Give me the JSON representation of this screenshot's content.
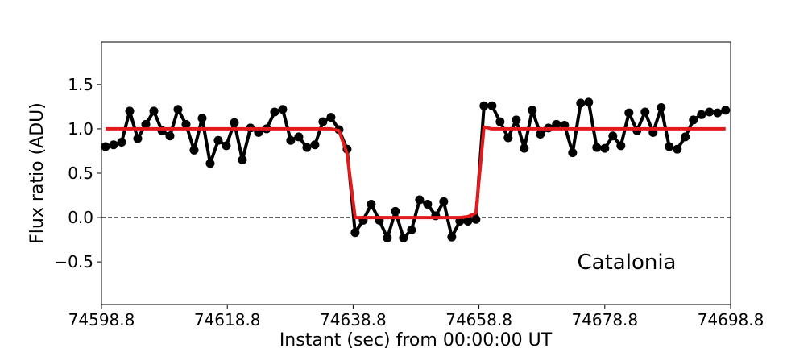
{
  "chart_data": {
    "type": "line",
    "annotation": "Catalonia",
    "xlabel": "Instant (sec) from 00:00:00 UT",
    "ylabel": "Flux ratio (ADU)",
    "x": [
      74599.44,
      74600.72,
      74602.0,
      74603.28,
      74604.56,
      74605.84,
      74607.12,
      74608.4,
      74609.68,
      74610.96,
      74612.24,
      74613.52,
      74614.8,
      74616.08,
      74617.36,
      74618.64,
      74619.92,
      74621.2,
      74622.48,
      74623.76,
      74625.04,
      74626.32,
      74627.6,
      74628.88,
      74630.16,
      74631.44,
      74632.72,
      74634.0,
      74635.28,
      74636.56,
      74637.84,
      74639.12,
      74640.4,
      74641.68,
      74642.96,
      74644.24,
      74645.52,
      74646.8,
      74648.08,
      74649.36,
      74650.64,
      74651.92,
      74653.2,
      74654.48,
      74655.76,
      74657.04,
      74658.32,
      74659.6,
      74660.88,
      74662.16,
      74663.44,
      74664.72,
      74666.0,
      74667.28,
      74668.56,
      74669.84,
      74671.12,
      74672.4,
      74673.68,
      74674.96,
      74676.24,
      74677.52,
      74678.8,
      74680.08,
      74681.36,
      74682.64,
      74683.92,
      74685.2,
      74686.48,
      74687.76,
      74689.04,
      74690.32,
      74691.6,
      74692.88,
      74694.16,
      74695.44,
      74696.72,
      74698.0
    ],
    "series": [
      {
        "color": "#000000",
        "markers": true,
        "values": [
          0.8,
          0.82,
          0.85,
          1.2,
          0.89,
          1.05,
          1.2,
          0.98,
          0.92,
          1.22,
          1.05,
          0.76,
          1.12,
          0.61,
          0.87,
          0.81,
          1.07,
          0.65,
          1.01,
          0.96,
          1.0,
          1.19,
          1.22,
          0.87,
          0.91,
          0.79,
          0.82,
          1.08,
          1.13,
          0.99,
          0.77,
          -0.17,
          -0.03,
          0.15,
          -0.03,
          -0.23,
          0.07,
          -0.23,
          -0.14,
          0.2,
          0.15,
          0.02,
          0.18,
          -0.22,
          -0.04,
          -0.04,
          -0.02,
          1.26,
          1.26,
          1.08,
          0.9,
          1.1,
          0.78,
          1.21,
          0.94,
          1.01,
          1.05,
          1.04,
          0.73,
          1.29,
          1.3,
          0.79,
          0.78,
          0.92,
          0.81,
          1.18,
          0.98,
          1.19,
          0.96,
          1.24,
          0.8,
          0.77,
          0.91,
          1.1,
          1.16,
          1.19,
          1.18,
          1.21
        ]
      },
      {
        "color": "#e31a1c",
        "markers": false,
        "values": [
          1,
          1,
          1,
          1,
          1,
          1,
          1,
          1,
          1,
          1,
          1,
          1,
          1,
          1,
          1,
          1,
          1,
          1,
          1,
          1,
          1,
          1,
          1,
          1,
          1,
          1,
          1,
          1,
          1,
          0.98,
          0.72,
          0,
          0,
          0,
          0,
          0,
          0,
          0,
          0,
          0,
          0,
          0,
          0,
          0,
          0,
          0.01,
          0.05,
          1.02,
          1,
          1,
          1,
          1,
          1,
          1,
          1,
          1,
          1,
          1,
          1,
          1,
          1,
          1,
          1,
          1,
          1,
          1,
          1,
          1,
          1,
          1,
          1,
          1,
          1,
          1,
          1,
          1,
          1,
          1
        ]
      }
    ],
    "reference_line": 0,
    "xlim": [
      74598.8,
      74698.8
    ],
    "xticks": [
      74598.8,
      74618.8,
      74638.8,
      74658.8,
      74678.8,
      74698.8
    ],
    "ylim": [
      -0.98,
      1.98
    ],
    "yticks": [
      {
        "value": -0.5,
        "label": "−0.5"
      },
      {
        "value": 0,
        "label": "0.0"
      },
      0.5,
      {
        "value": 1,
        "label": "1.0"
      },
      1.5
    ],
    "grid": false
  }
}
